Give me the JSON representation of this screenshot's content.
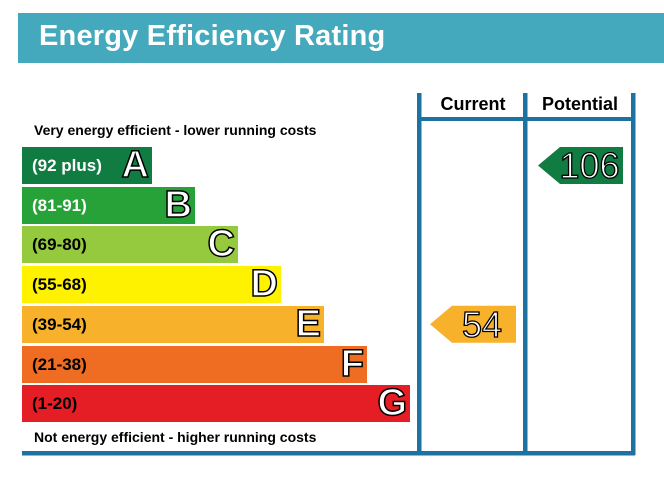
{
  "header": {
    "title": "Energy Efficiency Rating"
  },
  "notes": {
    "top": "Very energy efficient - lower running costs",
    "bottom": "Not energy efficient - higher running costs"
  },
  "columns": {
    "current": "Current",
    "potential": "Potential"
  },
  "chart_data": {
    "type": "bar",
    "title": "Energy Efficiency Rating",
    "bands": [
      {
        "letter": "A",
        "range": "(92 plus)",
        "color": "#107c42",
        "text_color": "#ffffff"
      },
      {
        "letter": "B",
        "range": "(81-91)",
        "color": "#26a239",
        "text_color": "#ffffff"
      },
      {
        "letter": "C",
        "range": "(69-80)",
        "color": "#96ca3e",
        "text_color": "#000000"
      },
      {
        "letter": "D",
        "range": "(55-68)",
        "color": "#fef200",
        "text_color": "#000000"
      },
      {
        "letter": "E",
        "range": "(39-54)",
        "color": "#f8b12b",
        "text_color": "#000000"
      },
      {
        "letter": "F",
        "range": "(21-38)",
        "color": "#ef6c23",
        "text_color": "#000000"
      },
      {
        "letter": "G",
        "range": "(1-20)",
        "color": "#e51d24",
        "text_color": "#000000"
      }
    ],
    "current": {
      "value": 54,
      "band": "E",
      "color": "#f8b12b"
    },
    "potential": {
      "value": 106,
      "band": "A",
      "color": "#107c42"
    }
  }
}
